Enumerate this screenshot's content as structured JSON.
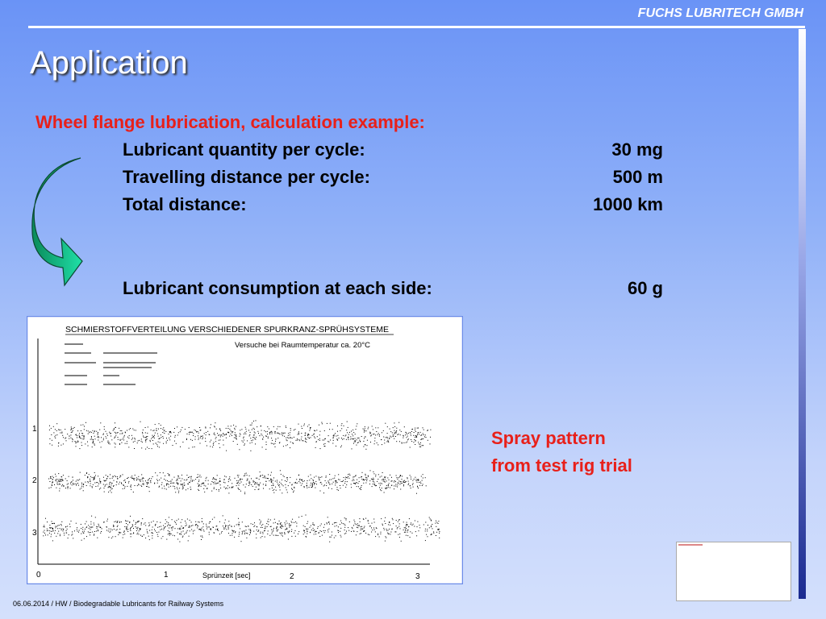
{
  "header": {
    "company": "FUCHS LUBRITECH GMBH",
    "title": "Application"
  },
  "calculation": {
    "heading": "Wheel flange lubrication, calculation example:",
    "rows": [
      [
        "Lubricant quantity per cycle:",
        "30 mg"
      ],
      [
        "Travelling distance per cycle:",
        "500 m"
      ],
      [
        "Total distance:",
        "1000 km"
      ]
    ],
    "result": [
      "Lubricant consumption at each side:",
      "60 g"
    ]
  },
  "figure": {
    "title": "SCHMIERSTOFFVERTEILUNG VERSCHIEDENER SPURKRANZ-SPRÜHSYSTEME",
    "subtitle": "Versuche bei Raumtemperatur ca. 20°C",
    "row_labels": [
      "1",
      "2",
      "3"
    ],
    "x_labels": [
      "0",
      "1",
      "2",
      "3"
    ],
    "x_title": "Sprünzeit [sec]"
  },
  "caption": [
    "Spray pattern",
    "from test rig trial"
  ],
  "footer": "06.06.2014 / HW / Biodegradable Lubricants for Railway Systems"
}
